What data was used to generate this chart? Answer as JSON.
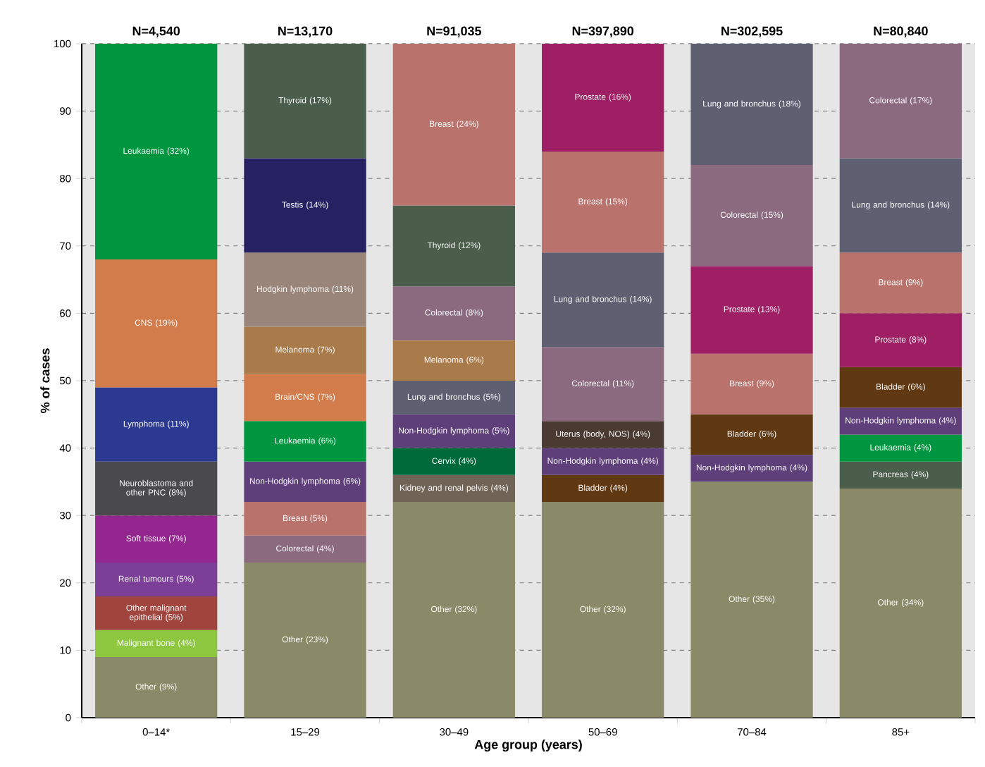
{
  "chart_data": {
    "type": "bar",
    "stacked": true,
    "xlabel": "Age group (years)",
    "ylabel": "% of cases",
    "categories": [
      "0–14*",
      "15–29",
      "30–49",
      "50–69",
      "70–84",
      "85+"
    ],
    "annotations": [
      {
        "text": "N=4,540",
        "x": "0–14*",
        "y": 100
      },
      {
        "text": "N=13,170",
        "x": "15–29",
        "y": 100
      },
      {
        "text": "N=91,035",
        "x": "30–49",
        "y": 100
      },
      {
        "text": "N=397,890",
        "x": "50–69",
        "y": 100
      },
      {
        "text": "N=302,595",
        "x": "70–84",
        "y": 100
      },
      {
        "text": "N=80,840",
        "x": "85+",
        "y": 100
      }
    ],
    "ylim": [
      0,
      100
    ],
    "yticks": [
      0,
      10,
      20,
      30,
      40,
      50,
      60,
      70,
      80,
      90,
      100
    ],
    "grid": "y",
    "series": [
      {
        "values": [
          9,
          23,
          32,
          32,
          35,
          34
        ],
        "colors": [
          "#8a8a68",
          "#8a8a68",
          "#8a8a68",
          "#8a8a68",
          "#8a8a68",
          "#8a8a68"
        ],
        "value_labels": [
          "Other (9%)",
          "Other (23%)",
          "Other (32%)",
          "Other (32%)",
          "Other (35%)",
          "Other (34%)"
        ]
      },
      {
        "values": [
          4,
          4,
          4,
          4,
          4,
          4
        ],
        "colors": [
          "#8dc63f",
          "#8b6a80",
          "#706457",
          "#603913",
          "#5f3f7a",
          "#4b5e4b"
        ],
        "value_labels": [
          "Malignant bone (4%)",
          "Colorectal (4%)",
          "Kidney and renal pelvis (4%)",
          "Bladder (4%)",
          "Non-Hodgkin lymphoma (4%)",
          "Pancreas (4%)"
        ]
      },
      {
        "values": [
          5,
          5,
          4,
          4,
          6,
          4
        ],
        "colors": [
          "#a0453e",
          "#b9726c",
          "#006a3a",
          "#5f3f7a",
          "#603913",
          "#00963f"
        ],
        "value_labels": [
          "Other malignant epithelial (5%)",
          "Breast (5%)",
          "Cervix (4%)",
          "Non-Hodgkin lymphoma (4%)",
          "Bladder (6%)",
          "Leukaemia (4%)"
        ]
      },
      {
        "values": [
          5,
          6,
          5,
          4,
          9,
          4
        ],
        "colors": [
          "#7b3f98",
          "#5f3f7a",
          "#5f3f7a",
          "#4b3a31",
          "#b9726c",
          "#5f3f7a"
        ],
        "value_labels": [
          "Renal tumours (5%)",
          "Non-Hodgkin lymphoma (6%)",
          "Non-Hodgkin lymphoma (5%)",
          "Uterus (body, NOS) (4%)",
          "Breast (9%)",
          "Non-Hodgkin lymphoma (4%)"
        ]
      },
      {
        "values": [
          7,
          6,
          5,
          11,
          13,
          6
        ],
        "colors": [
          "#93278f",
          "#00963f",
          "#5e6072",
          "#8b6a80",
          "#9e1f63",
          "#603913"
        ],
        "value_labels": [
          "Soft tissue (7%)",
          "Leukaemia (6%)",
          "Lung and bronchus (5%)",
          "Colorectal (11%)",
          "Prostate (13%)",
          "Bladder (6%)"
        ]
      },
      {
        "values": [
          8,
          7,
          6,
          14,
          15,
          8
        ],
        "colors": [
          "#4a4a4e",
          "#d27c4b",
          "#a97a4a",
          "#5e6072",
          "#8b6a80",
          "#9e1f63"
        ],
        "value_labels": [
          "Neuroblastoma and other PNC (8%)",
          "Brain/CNS (7%)",
          "Melanoma (6%)",
          "Lung and bronchus (14%)",
          "Colorectal (15%)",
          "Prostate (8%)"
        ]
      },
      {
        "values": [
          11,
          7,
          8,
          15,
          18,
          9
        ],
        "colors": [
          "#2b3990",
          "#a97a4a",
          "#8b6a80",
          "#b9726c",
          "#5e6072",
          "#b9726c"
        ],
        "value_labels": [
          "Lymphoma (11%)",
          "Melanoma (7%)",
          "Colorectal (8%)",
          "Breast (15%)",
          "Lung and bronchus (18%)",
          "Breast (9%)"
        ]
      },
      {
        "values": [
          19,
          11,
          12,
          16,
          null,
          14
        ],
        "colors": [
          "#d27c4b",
          "#9a857a",
          "#4b5e4b",
          "#9e1f63",
          null,
          "#5e6072"
        ],
        "value_labels": [
          "CNS (19%)",
          "Hodgkin lymphoma (11%)",
          "Thyroid (12%)",
          "Prostate (16%)",
          null,
          "Lung and bronchus (14%)"
        ]
      },
      {
        "values": [
          32,
          14,
          24,
          null,
          null,
          17
        ],
        "colors": [
          "#00963f",
          "#262262",
          "#b9726c",
          null,
          null,
          "#8b6a80"
        ],
        "value_labels": [
          "Leukaemia (32%)",
          "Testis (14%)",
          "Breast (24%)",
          null,
          null,
          "Colorectal (17%)"
        ]
      },
      {
        "values": [
          null,
          17,
          null,
          null,
          null,
          null
        ],
        "colors": [
          null,
          "#4b5e4b",
          null,
          null,
          null,
          null
        ],
        "value_labels": [
          null,
          "Thyroid (17%)",
          null,
          null,
          null,
          null
        ]
      }
    ]
  }
}
